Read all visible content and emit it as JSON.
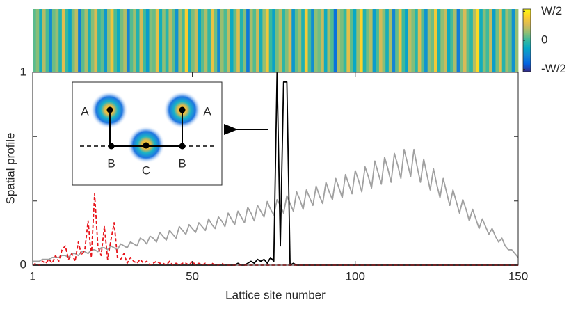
{
  "chart_data": [
    {
      "type": "heatmap",
      "values": [
        0.05,
        0.12,
        -0.1,
        0.2,
        0.02,
        -0.25,
        0.08,
        0.15,
        -0.05,
        0.3,
        0.0,
        -0.15,
        0.1,
        0.22,
        -0.3,
        0.05,
        0.18,
        -0.08,
        0.12,
        0.28,
        -0.02,
        0.06,
        -0.2,
        0.14,
        0.35,
        0.03,
        -0.12,
        0.09,
        0.2,
        -0.28,
        0.04,
        0.16,
        -0.06,
        0.26,
        0.01,
        -0.18,
        0.11,
        0.07,
        0.32,
        -0.1,
        0.13,
        -0.04,
        0.21,
        0.06,
        -0.22,
        0.17,
        0.02,
        0.4,
        -0.08,
        0.1,
        0.24,
        -0.14,
        0.05,
        0.19,
        -0.02,
        0.33,
        0.08,
        -0.26,
        0.15,
        0.03,
        0.22,
        -0.12,
        0.07,
        0.29,
        -0.05,
        0.12,
        -0.32,
        0.18,
        0.04,
        0.25,
        -0.09,
        0.14,
        0.36,
        0.0,
        -0.16,
        0.09,
        0.21,
        -0.03,
        0.11,
        0.27,
        -0.2,
        0.06,
        0.16,
        -0.07,
        0.38,
        0.02,
        -0.24,
        0.13,
        0.08,
        0.23,
        -0.11,
        0.17,
        0.04,
        -0.35,
        0.19,
        0.1,
        -0.01,
        0.31,
        0.06,
        -0.13,
        0.14,
        0.42,
        -0.06,
        0.09,
        0.2,
        -0.18,
        0.03,
        0.26,
        0.12,
        -0.09,
        0.17,
        -0.27,
        0.07,
        0.34,
        0.01,
        -0.15,
        0.22,
        0.11,
        -0.04,
        0.29,
        0.05,
        -0.21,
        0.15,
        0.08,
        0.37,
        -0.07,
        0.13,
        0.24,
        -0.12,
        0.02,
        0.18,
        -0.3,
        0.1,
        0.27,
        0.06,
        -0.03,
        0.2,
        0.44,
        -0.1,
        0.12,
        0.01,
        0.23,
        -0.17,
        0.09,
        0.3,
        -0.05,
        0.16,
        0.07,
        -0.22,
        0.14
      ],
      "clim": [
        -0.54,
        0.54
      ],
      "cticks": [
        {
          "value": -0.5,
          "label": "-W/2"
        },
        0,
        {
          "value": 0.5,
          "label": "W/2"
        }
      ]
    },
    {
      "type": "line",
      "xlabel": "Lattice site number",
      "ylabel": "Spatial profile",
      "xlim": [
        1,
        150
      ],
      "ylim": [
        0,
        1
      ],
      "xticks": [
        1,
        50,
        100,
        150
      ],
      "yticks": [
        0,
        1
      ],
      "yminor": [
        0.333,
        0.667
      ],
      "x": [
        1,
        2,
        3,
        4,
        5,
        6,
        7,
        8,
        9,
        10,
        11,
        12,
        13,
        14,
        15,
        16,
        17,
        18,
        19,
        20,
        21,
        22,
        23,
        24,
        25,
        26,
        27,
        28,
        29,
        30,
        31,
        32,
        33,
        34,
        35,
        36,
        37,
        38,
        39,
        40,
        41,
        42,
        43,
        44,
        45,
        46,
        47,
        48,
        49,
        50,
        51,
        52,
        53,
        54,
        55,
        56,
        57,
        58,
        59,
        60,
        61,
        62,
        63,
        64,
        65,
        66,
        67,
        68,
        69,
        70,
        71,
        72,
        73,
        74,
        75,
        76,
        77,
        78,
        79,
        80,
        81,
        82,
        83,
        84,
        85,
        86,
        87,
        88,
        89,
        90,
        91,
        92,
        93,
        94,
        95,
        96,
        97,
        98,
        99,
        100,
        101,
        102,
        103,
        104,
        105,
        106,
        107,
        108,
        109,
        110,
        111,
        112,
        113,
        114,
        115,
        116,
        117,
        118,
        119,
        120,
        121,
        122,
        123,
        124,
        125,
        126,
        127,
        128,
        129,
        130,
        131,
        132,
        133,
        134,
        135,
        136,
        137,
        138,
        139,
        140,
        141,
        142,
        143,
        144,
        145,
        146,
        147,
        148,
        149,
        150
      ],
      "series": [
        {
          "color": "#a0a0a0",
          "linestyle": "solid",
          "values": [
            0.02,
            0.02,
            0.02,
            0.03,
            0.03,
            0.03,
            0.04,
            0.04,
            0.04,
            0.05,
            0.05,
            0.04,
            0.06,
            0.06,
            0.05,
            0.07,
            0.07,
            0.06,
            0.08,
            0.08,
            0.07,
            0.09,
            0.09,
            0.08,
            0.1,
            0.09,
            0.08,
            0.11,
            0.1,
            0.09,
            0.12,
            0.11,
            0.1,
            0.14,
            0.13,
            0.11,
            0.15,
            0.14,
            0.12,
            0.17,
            0.15,
            0.13,
            0.18,
            0.16,
            0.14,
            0.2,
            0.18,
            0.16,
            0.21,
            0.19,
            0.17,
            0.22,
            0.2,
            0.18,
            0.24,
            0.21,
            0.19,
            0.25,
            0.23,
            0.2,
            0.27,
            0.24,
            0.21,
            0.28,
            0.25,
            0.22,
            0.3,
            0.27,
            0.23,
            0.31,
            0.28,
            0.25,
            0.33,
            0.29,
            0.26,
            0.34,
            0.31,
            0.27,
            0.36,
            0.32,
            0.28,
            0.38,
            0.34,
            0.29,
            0.39,
            0.35,
            0.31,
            0.41,
            0.36,
            0.32,
            0.43,
            0.38,
            0.34,
            0.45,
            0.4,
            0.35,
            0.47,
            0.42,
            0.37,
            0.49,
            0.44,
            0.38,
            0.51,
            0.46,
            0.4,
            0.54,
            0.48,
            0.42,
            0.56,
            0.5,
            0.43,
            0.58,
            0.52,
            0.45,
            0.6,
            0.53,
            0.46,
            0.6,
            0.51,
            0.43,
            0.55,
            0.47,
            0.39,
            0.5,
            0.42,
            0.35,
            0.45,
            0.38,
            0.31,
            0.39,
            0.33,
            0.27,
            0.34,
            0.29,
            0.23,
            0.29,
            0.24,
            0.19,
            0.24,
            0.2,
            0.16,
            0.19,
            0.15,
            0.12,
            0.14,
            0.1,
            0.08,
            0.08,
            0.06,
            0.04
          ]
        },
        {
          "color": "#000000",
          "linestyle": "solid",
          "values": [
            0,
            0,
            0,
            0,
            0,
            0,
            0,
            0,
            0,
            0,
            0,
            0,
            0,
            0,
            0,
            0,
            0,
            0,
            0,
            0,
            0,
            0,
            0,
            0,
            0,
            0,
            0,
            0,
            0,
            0,
            0,
            0,
            0,
            0,
            0,
            0,
            0,
            0,
            0,
            0,
            0,
            0,
            0,
            0,
            0,
            0,
            0,
            0,
            0,
            0,
            0,
            0,
            0,
            0,
            0,
            0,
            0,
            0,
            0,
            0,
            0,
            0,
            0,
            0.01,
            0,
            0,
            0.01,
            0.02,
            0.01,
            0.03,
            0.02,
            0.03,
            0.01,
            0.04,
            0.02,
            1,
            0.1,
            0.95,
            0.95,
            0,
            0.01,
            0,
            0,
            0,
            0,
            0,
            0,
            0,
            0,
            0,
            0,
            0,
            0,
            0,
            0,
            0,
            0,
            0,
            0,
            0,
            0,
            0,
            0,
            0,
            0,
            0,
            0,
            0,
            0,
            0,
            0,
            0,
            0,
            0,
            0,
            0,
            0,
            0,
            0,
            0,
            0,
            0,
            0,
            0,
            0,
            0,
            0,
            0,
            0,
            0,
            0,
            0,
            0,
            0,
            0,
            0,
            0,
            0,
            0,
            0,
            0,
            0,
            0,
            0,
            0,
            0,
            0,
            0,
            0,
            0
          ]
        },
        {
          "color": "#e8141b",
          "linestyle": "dashed",
          "values": [
            0,
            0.01,
            0,
            0.02,
            0.01,
            0.03,
            0.01,
            0.05,
            0.02,
            0.08,
            0.1,
            0.03,
            0.06,
            0.02,
            0.12,
            0.05,
            0.08,
            0.23,
            0.04,
            0.37,
            0.1,
            0.05,
            0.2,
            0.03,
            0.13,
            0.22,
            0.04,
            0.03,
            0.06,
            0.01,
            0.04,
            0.02,
            0.01,
            0.03,
            0.01,
            0.02,
            0,
            0.01,
            0.02,
            0.01,
            0.01,
            0,
            0.02,
            0,
            0.01,
            0,
            0.01,
            0.01,
            0,
            0.02,
            0,
            0.01,
            0,
            0.01,
            0,
            0.01,
            0,
            0,
            0.01,
            0,
            0,
            0,
            0,
            0,
            0,
            0,
            0,
            0,
            0,
            0,
            0,
            0,
            0,
            0,
            0,
            0,
            0,
            0,
            0,
            0,
            0,
            0,
            0,
            0,
            0,
            0,
            0,
            0,
            0,
            0,
            0,
            0,
            0,
            0,
            0,
            0,
            0,
            0,
            0,
            0,
            0,
            0,
            0,
            0,
            0,
            0,
            0,
            0,
            0,
            0,
            0,
            0,
            0,
            0,
            0,
            0,
            0,
            0,
            0,
            0,
            0,
            0,
            0,
            0,
            0,
            0,
            0,
            0,
            0,
            0,
            0,
            0,
            0,
            0,
            0,
            0,
            0,
            0,
            0,
            0,
            0,
            0,
            0,
            0,
            0,
            0,
            0,
            0,
            0,
            0
          ]
        }
      ]
    }
  ],
  "inset": {
    "labels": [
      "A",
      "A",
      "B",
      "C",
      "B"
    ]
  }
}
